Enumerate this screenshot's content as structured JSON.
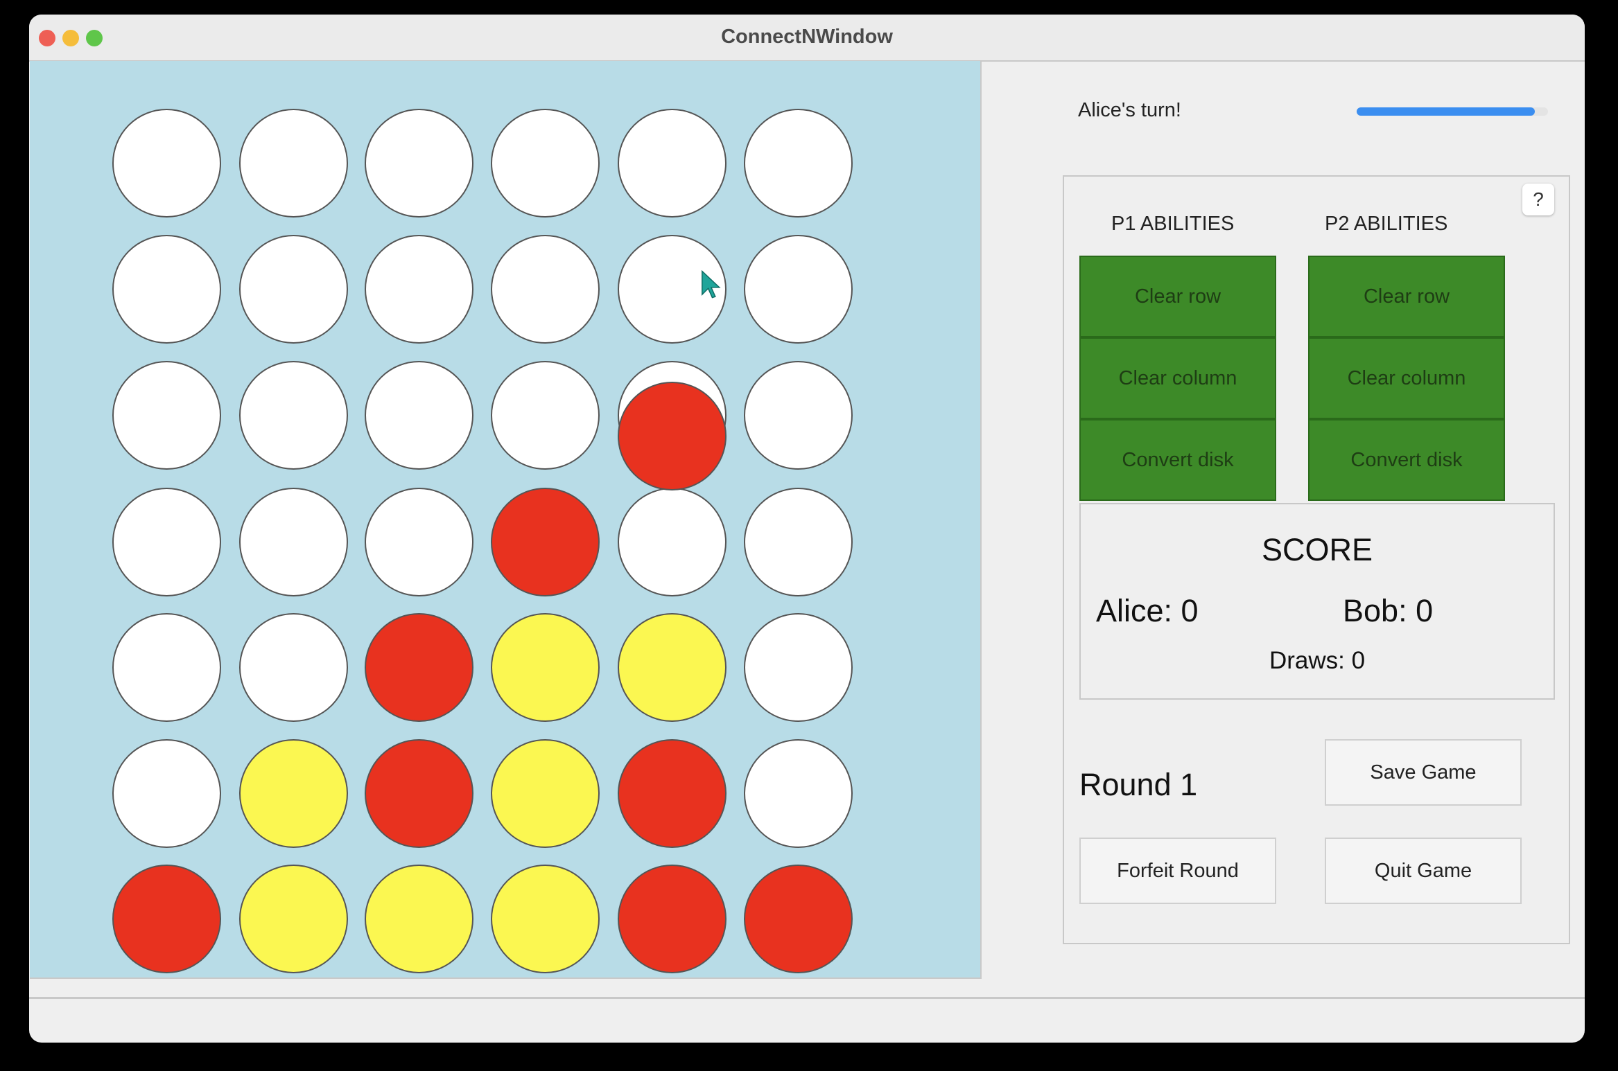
{
  "window": {
    "title": "ConnectNWindow"
  },
  "colors": {
    "red": "#e8321f",
    "yellow": "#fbf751",
    "empty": "#ffffff",
    "board": "#b8dce7",
    "ability": "#3d8a28",
    "progress": "#3b8ef0"
  },
  "board": {
    "rows": [
      [
        "W",
        "W",
        "W",
        "W",
        "W",
        "W"
      ],
      [
        "W",
        "W",
        "W",
        "W",
        "W",
        "W"
      ],
      [
        "W",
        "W",
        "W",
        "W",
        "W",
        "W"
      ],
      [
        "W",
        "W",
        "W",
        "R",
        "W",
        "W"
      ],
      [
        "W",
        "W",
        "R",
        "Y",
        "Y",
        "W"
      ],
      [
        "W",
        "Y",
        "R",
        "Y",
        "R",
        "W"
      ],
      [
        "R",
        "Y",
        "Y",
        "Y",
        "R",
        "R"
      ]
    ],
    "falling_disc": {
      "row": 2,
      "column": 4,
      "color": "R"
    }
  },
  "status": {
    "turn_text": "Alice's turn!",
    "timer_progress": 0.93
  },
  "help": {
    "label": "?"
  },
  "abilities": {
    "p1": {
      "label": "P1 ABILITIES",
      "buttons": [
        "Clear row",
        "Clear column",
        "Convert disk"
      ]
    },
    "p2": {
      "label": "P2 ABILITIES",
      "buttons": [
        "Clear row",
        "Clear column",
        "Convert disk"
      ]
    }
  },
  "score": {
    "title": "SCORE",
    "alice": "Alice: 0",
    "bob": "Bob: 0",
    "draws": "Draws: 0"
  },
  "round": "Round 1",
  "actions": {
    "save": "Save Game",
    "forfeit": "Forfeit Round",
    "quit": "Quit Game"
  }
}
